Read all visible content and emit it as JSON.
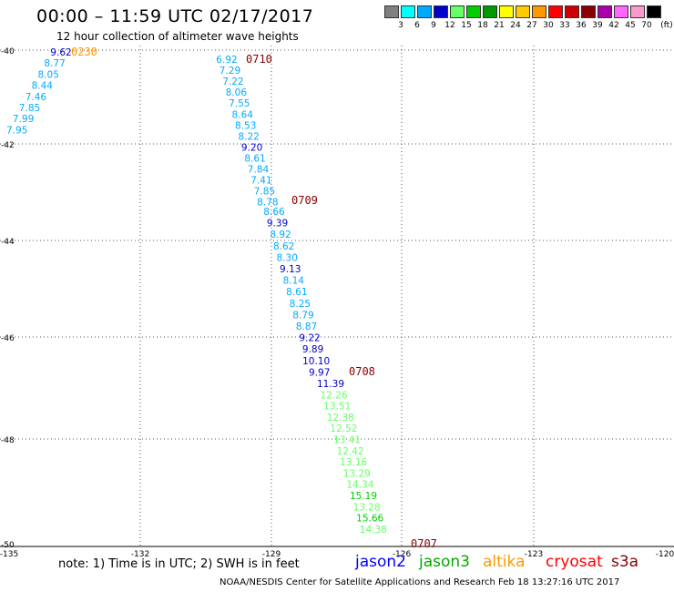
{
  "header": {
    "title": "00:00 – 11:59 UTC 02/17/2017",
    "subtitle": "12 hour collection of altimeter wave heights"
  },
  "color_scale": {
    "labels": [
      "3",
      "6",
      "9",
      "12",
      "15",
      "18",
      "21",
      "24",
      "27",
      "30",
      "33",
      "36",
      "39",
      "42",
      "45",
      "70",
      "(ft)"
    ],
    "colors": [
      "#808080",
      "#00ffff",
      "#00aaff",
      "#0000cc",
      "#66ff66",
      "#00cc00",
      "#009900",
      "#ffff00",
      "#ffcc00",
      "#ff9900",
      "#ff0000",
      "#cc0000",
      "#880000",
      "#aa00aa",
      "#ff66ff",
      "#ff99cc",
      "#000000"
    ]
  },
  "map": {
    "lat_labels": [
      "-40",
      "-42",
      "-44",
      "-46",
      "-48",
      "-50"
    ],
    "lon_labels": [
      "-135",
      "-132",
      "-129",
      "-126",
      "-123",
      "-120"
    ]
  },
  "tracks": [
    {
      "time": "0230",
      "time_color": "#ff9900",
      "points": [
        {
          "v": "9.62",
          "c": "#0000cc"
        },
        {
          "v": "8.77",
          "c": "#00aaff"
        },
        {
          "v": "8.05",
          "c": "#00aaff"
        },
        {
          "v": "8.44",
          "c": "#00aaff"
        },
        {
          "v": "7.46",
          "c": "#00aaff"
        },
        {
          "v": "7.85",
          "c": "#00aaff"
        },
        {
          "v": "7.99",
          "c": "#00aaff"
        },
        {
          "v": "7.95",
          "c": "#00aaff"
        }
      ]
    },
    {
      "time": "0710",
      "time_color": "#880000",
      "points": [
        {
          "v": "6.92",
          "c": "#00aaff"
        },
        {
          "v": "7.29",
          "c": "#00aaff"
        },
        {
          "v": "7.22",
          "c": "#00aaff"
        },
        {
          "v": "8.06",
          "c": "#00aaff"
        },
        {
          "v": "7.55",
          "c": "#00aaff"
        },
        {
          "v": "8.64",
          "c": "#00aaff"
        },
        {
          "v": "8.53",
          "c": "#00aaff"
        },
        {
          "v": "8.22",
          "c": "#00aaff"
        },
        {
          "v": "9.20",
          "c": "#0000cc"
        },
        {
          "v": "8.61",
          "c": "#00aaff"
        },
        {
          "v": "7.84",
          "c": "#00aaff"
        },
        {
          "v": "7.41",
          "c": "#00aaff"
        },
        {
          "v": "7.85",
          "c": "#00aaff"
        },
        {
          "v": "8.78",
          "c": "#00aaff"
        }
      ]
    },
    {
      "time": "0709",
      "time_color": "#880000",
      "points": [
        {
          "v": "8.66",
          "c": "#00aaff"
        },
        {
          "v": "9.39",
          "c": "#0000cc"
        },
        {
          "v": "8.92",
          "c": "#00aaff"
        },
        {
          "v": "8.62",
          "c": "#00aaff"
        },
        {
          "v": "8.30",
          "c": "#00aaff"
        },
        {
          "v": "9.13",
          "c": "#0000cc"
        },
        {
          "v": "8.14",
          "c": "#00aaff"
        },
        {
          "v": "8.61",
          "c": "#00aaff"
        },
        {
          "v": "8.25",
          "c": "#00aaff"
        },
        {
          "v": "8.79",
          "c": "#00aaff"
        },
        {
          "v": "8.87",
          "c": "#00aaff"
        },
        {
          "v": "9.22",
          "c": "#0000cc"
        },
        {
          "v": "9.89",
          "c": "#0000cc"
        },
        {
          "v": "10.10",
          "c": "#0000cc"
        },
        {
          "v": "9.97",
          "c": "#0000cc"
        }
      ]
    },
    {
      "time": "0708",
      "time_color": "#880000",
      "points": [
        {
          "v": "11.39",
          "c": "#0000cc"
        },
        {
          "v": "12.26",
          "c": "#66ff66"
        },
        {
          "v": "13.51",
          "c": "#66ff66"
        },
        {
          "v": "12.38",
          "c": "#66ff66"
        },
        {
          "v": "12.52",
          "c": "#66ff66"
        },
        {
          "v": "13.41",
          "c": "#66ff66"
        },
        {
          "v": "12.42",
          "c": "#66ff66"
        },
        {
          "v": "13.16",
          "c": "#66ff66"
        },
        {
          "v": "13.29",
          "c": "#66ff66"
        },
        {
          "v": "14.34",
          "c": "#66ff66"
        },
        {
          "v": "15.19",
          "c": "#00cc00"
        },
        {
          "v": "13.28",
          "c": "#66ff66"
        },
        {
          "v": "15.66",
          "c": "#00cc00"
        },
        {
          "v": "14.38",
          "c": "#66ff66"
        }
      ]
    },
    {
      "time": "0707",
      "time_color": "#880000",
      "points": []
    }
  ],
  "note": "note: 1) Time is in UTC; 2) SWH is in feet",
  "satellites": [
    {
      "name": "jason2",
      "color": "#0000ff"
    },
    {
      "name": "jason3",
      "color": "#00aa00"
    },
    {
      "name": "altika",
      "color": "#ff9900"
    },
    {
      "name": "cryosat",
      "color": "#ff0000"
    },
    {
      "name": "s3a",
      "color": "#880000"
    }
  ],
  "footer": "NOAA/NESDIS Center for Satellite Applications and Research   Feb 18 13:27:16 UTC 2017"
}
